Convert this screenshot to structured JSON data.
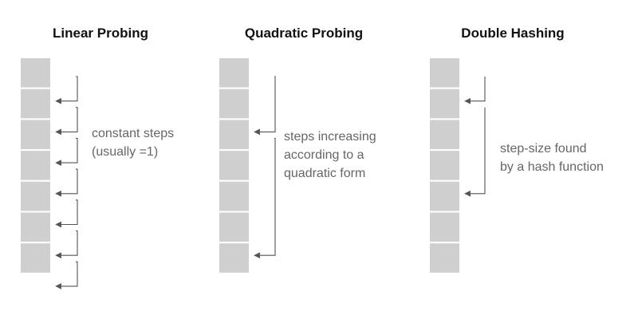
{
  "diagram": {
    "panels": [
      {
        "title": "Linear Probing",
        "note": [
          "constant steps",
          "(usually =1)"
        ],
        "cell_count": 7,
        "probe_hops": [
          [
            0,
            1
          ],
          [
            1,
            2
          ],
          [
            2,
            3
          ],
          [
            3,
            4
          ],
          [
            4,
            5
          ],
          [
            5,
            6
          ],
          [
            6,
            7
          ]
        ]
      },
      {
        "title": "Quadratic Probing",
        "note": [
          "steps increasing",
          "according to a",
          "quadratic form"
        ],
        "cell_count": 7,
        "probe_hops": [
          [
            0,
            2
          ],
          [
            2,
            6
          ]
        ]
      },
      {
        "title": "Double Hashing",
        "note": [
          "step-size found",
          "by a hash function"
        ],
        "cell_count": 7,
        "probe_hops": [
          [
            0,
            1
          ],
          [
            1,
            4
          ]
        ]
      }
    ],
    "colors": {
      "cell": "#cfcfcf",
      "arrow": "#555555",
      "note": "#666666",
      "title": "#111111"
    }
  }
}
